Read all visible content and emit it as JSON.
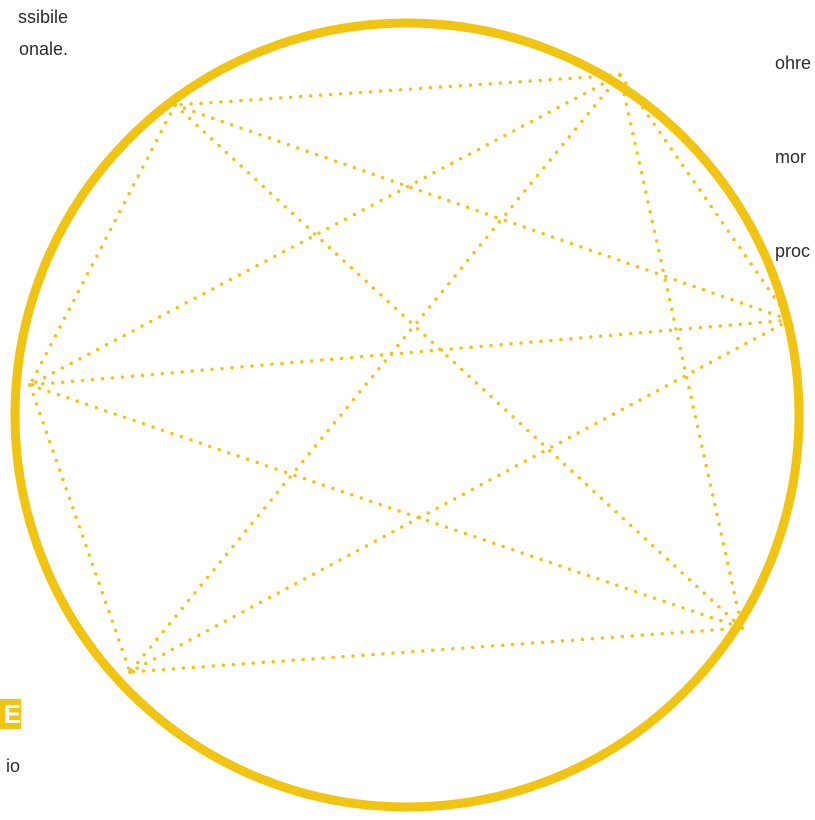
{
  "text": {
    "left_lines": [
      "ssibile",
      "onale."
    ],
    "right_lines": [
      "ohre",
      "mor",
      "proc"
    ],
    "badge": "E",
    "caption": "io"
  },
  "colors": {
    "accent": "#f2c412",
    "text": "#2b2b2b",
    "background": "#ffffff"
  },
  "diagram": {
    "type": "star-network-in-circle",
    "line_style": "dotted",
    "node_count": 6,
    "edges": [
      [
        0,
        1
      ],
      [
        0,
        2
      ],
      [
        0,
        3
      ],
      [
        0,
        4
      ],
      [
        0,
        5
      ],
      [
        1,
        2
      ],
      [
        1,
        3
      ],
      [
        1,
        4
      ],
      [
        2,
        3
      ],
      [
        2,
        5
      ],
      [
        3,
        4
      ],
      [
        3,
        5
      ],
      [
        4,
        5
      ]
    ]
  }
}
